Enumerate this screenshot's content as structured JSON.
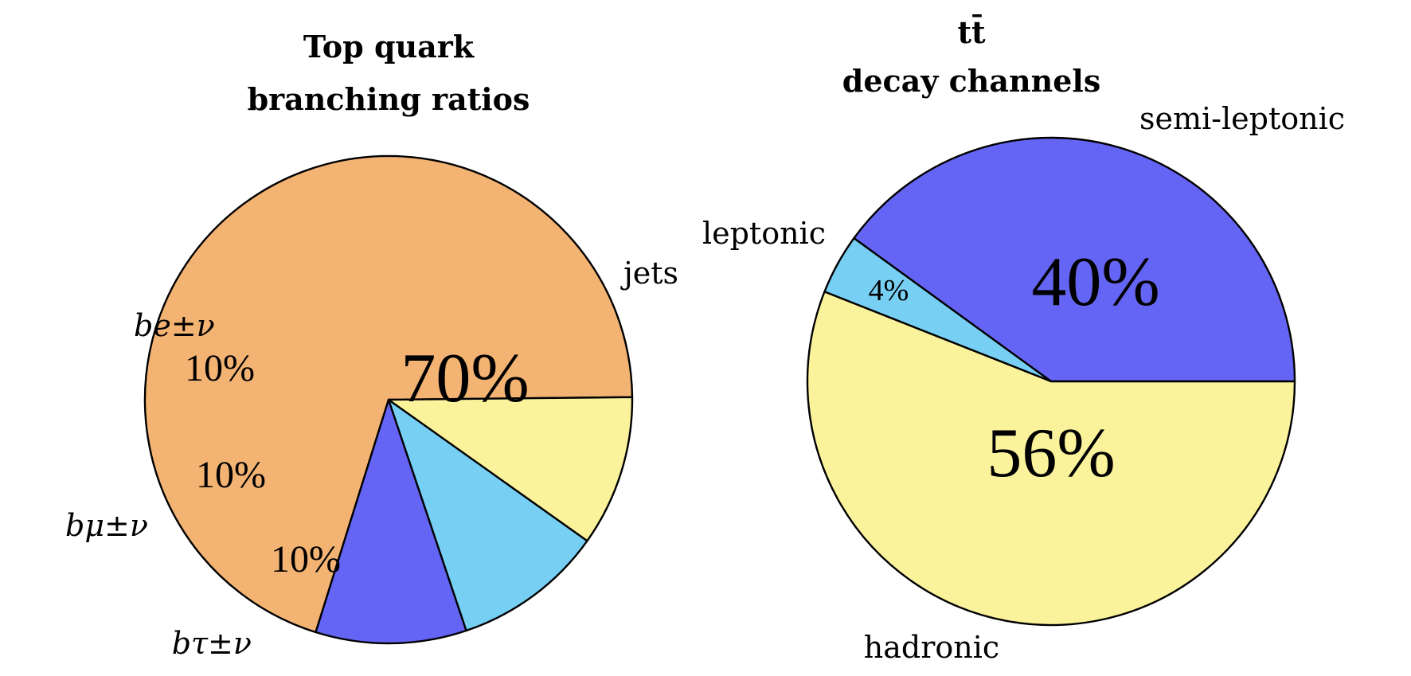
{
  "chart_data": [
    {
      "type": "pie",
      "title_lines": [
        "Top quark",
        "branching ratios"
      ],
      "slices": [
        {
          "label": "jets",
          "value": 70,
          "value_label": "70%",
          "color": "#f3b373"
        },
        {
          "label": "be±ν",
          "value": 10,
          "value_label": "10%",
          "color": "#6565f5"
        },
        {
          "label": "bμ±ν",
          "value": 10,
          "value_label": "10%",
          "color": "#78cff4"
        },
        {
          "label": "bτ±ν",
          "value": 10,
          "value_label": "10%",
          "color": "#fbf29c"
        }
      ]
    },
    {
      "type": "pie",
      "title_lines": [
        "tt̄",
        "decay channels"
      ],
      "slices": [
        {
          "label": "semi-leptonic",
          "value": 40,
          "value_label": "40%",
          "color": "#6565f5"
        },
        {
          "label": "leptonic",
          "value": 4,
          "value_label": "4%",
          "color": "#78cff4"
        },
        {
          "label": "hadronic",
          "value": 56,
          "value_label": "56%",
          "color": "#fbf29c"
        }
      ]
    }
  ]
}
